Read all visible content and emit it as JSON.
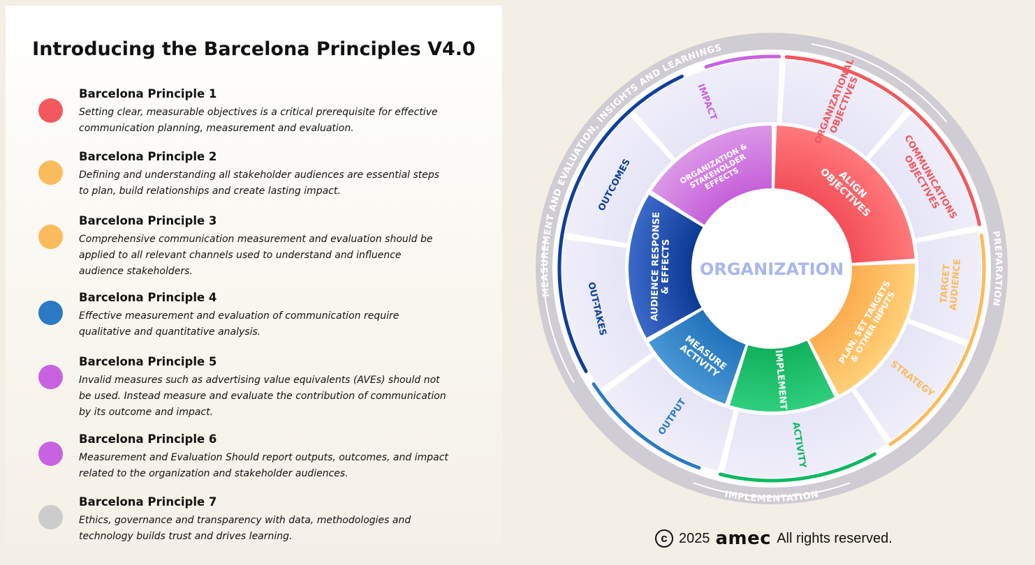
{
  "title": "Introducing the Barcelona Principles V4.0",
  "principles": [
    {
      "title": "Barcelona Principle 1",
      "text": "Setting clear, measurable objectives is a critical prerequisite for effective communication planning, measurement and evaluation.",
      "color": "#f2585e"
    },
    {
      "title": "Barcelona Principle 2",
      "text": "Defining and understanding all stakeholder audiences are essential steps to plan, build relationships and create lasting impact.",
      "color": "#fcbb5c"
    },
    {
      "title": "Barcelona Principle 3",
      "text": "Comprehensive communication measurement and evaluation should be applied to all relevant channels used to understand and influence audience stakeholders.",
      "color": "#fcbb5c"
    },
    {
      "title": "Barcelona Principle 4",
      "text": "Effective measurement and evaluation of communication require qualitative and quantitative analysis.",
      "color": "#2a7ac4"
    },
    {
      "title": "Barcelona Principle 5",
      "text": "Invalid measures such as advertising value equivalents (AVEs) should not be used. Instead measure and evaluate the contribution of communication by its outcome and impact.",
      "color": "#c862e0"
    },
    {
      "title": "Barcelona Principle 6",
      "text": "Measurement and Evaluation Should report outputs, outcomes, and impact related to the organization and stakeholder audiences.",
      "color": "#c862e0"
    },
    {
      "title": "Barcelona Principle 7",
      "text": "Ethics, governance and transparency with data, methodologies and technology builds trust and drives learning.",
      "color": "#cccccc"
    }
  ],
  "wheel": {
    "center": "ORGANIZATION",
    "inner": [
      {
        "lines": [
          "ALIGN",
          "OBJECTIVES"
        ]
      },
      {
        "lines": [
          "PLAN, SET TARGETS",
          "& OTHER INPUTS"
        ]
      },
      {
        "lines": [
          "IMPLEMENT"
        ]
      },
      {
        "lines": [
          "MEASURE",
          "ACTIVITY"
        ]
      },
      {
        "lines": [
          "AUDIENCE RESPONSE",
          "& EFFECTS"
        ]
      },
      {
        "lines": [
          "ORGANIZATION &",
          "STAKEHOLDER",
          "EFFECTS"
        ]
      }
    ],
    "outer": [
      {
        "lines": [
          "ORGANIZATIONAL",
          "OBJECTIVES"
        ]
      },
      {
        "lines": [
          "COMMUNICATIONS",
          "OBJECTIVES"
        ]
      },
      {
        "lines": [
          "TARGET",
          "AUDIENCE"
        ]
      },
      {
        "lines": [
          "STRATEGY"
        ]
      },
      {
        "lines": [
          "ACTIVITY"
        ]
      },
      {
        "lines": [
          "OUTPUT"
        ]
      },
      {
        "lines": [
          "OUT-TAKES"
        ]
      },
      {
        "lines": [
          "OUTCOMES"
        ]
      },
      {
        "lines": [
          "IMPACT"
        ]
      }
    ],
    "ring": [
      {
        "label": "MEASUREMENT AND EVALUATION, INSIGHTS AND LEARNINGS"
      },
      {
        "label": "PREPARATION"
      },
      {
        "label": "IMPLEMENTATION"
      }
    ],
    "colors": {
      "red": "#f2585e",
      "orange": "#fcbb5c",
      "green": "#10b963",
      "blue": "#2a7ac4",
      "navy": "#0f3f9c",
      "purple": "#c862e0",
      "ring": "#d0ccd3",
      "outer_fill": "#e9e8f6",
      "center_text": "#a9b6f0"
    }
  },
  "copyright": {
    "year": "2025",
    "brand": "amec",
    "rights": "All rights reserved."
  }
}
